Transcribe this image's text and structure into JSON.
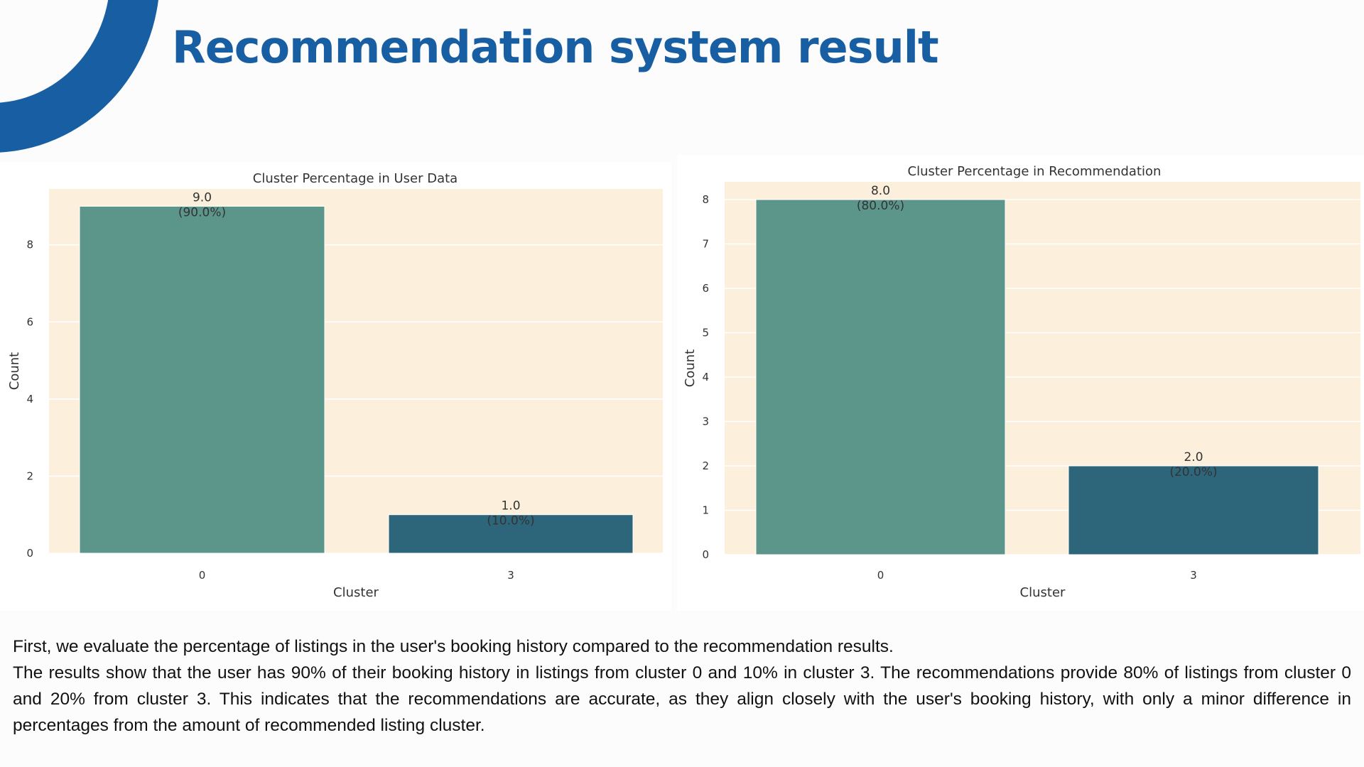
{
  "slide": {
    "title": "Recommendation system result",
    "paragraphs": [
      "First, we evaluate the percentage of listings in the user's booking history compared to the recommendation results.",
      "The results show that the user has 90% of their booking history in listings from cluster 0 and 10% in cluster 3. The recommendations provide 80% of listings from cluster 0 and 20% from cluster 3. This indicates that the recommendations are accurate, as they align closely with the user's booking history, with only a minor difference in percentages from the amount of recommended listing cluster."
    ]
  },
  "colors": {
    "brand": "#175ea3",
    "plot_background": "#fcefdc",
    "bar_cluster_0": "#5c968b",
    "bar_cluster_3": "#2d667a"
  },
  "chart_data": [
    {
      "type": "bar",
      "title": "Cluster Percentage in User Data",
      "xlabel": "Cluster",
      "ylabel": "Count",
      "categories": [
        "0",
        "3"
      ],
      "values": [
        9,
        1
      ],
      "data_labels": [
        [
          "9.0",
          "(90.0%)"
        ],
        [
          "1.0",
          "(10.0%)"
        ]
      ],
      "yticks": [
        0,
        2,
        4,
        6,
        8
      ],
      "ylim": [
        0,
        9.45
      ],
      "grid": true
    },
    {
      "type": "bar",
      "title": "Cluster Percentage in Recommendation",
      "xlabel": "Cluster",
      "ylabel": "Count",
      "categories": [
        "0",
        "3"
      ],
      "values": [
        8,
        2
      ],
      "data_labels": [
        [
          "8.0",
          "(80.0%)"
        ],
        [
          "2.0",
          "(20.0%)"
        ]
      ],
      "yticks": [
        0,
        1,
        2,
        3,
        4,
        5,
        6,
        7,
        8
      ],
      "ylim": [
        0,
        8.4
      ],
      "grid": true
    }
  ]
}
